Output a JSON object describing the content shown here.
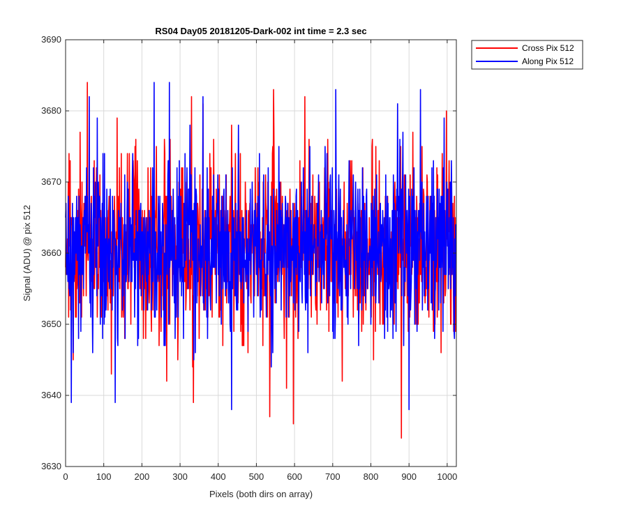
{
  "chart_data": {
    "type": "line",
    "title": "RS04 Day05 20181205-Dark-002 int time = 2.3 sec",
    "xlabel": "Pixels (both dirs on array)",
    "ylabel": "Signal (ADU) @ pix 512",
    "xlim": [
      0,
      1024
    ],
    "ylim": [
      3630,
      3690
    ],
    "xticks": [
      0,
      100,
      200,
      300,
      400,
      500,
      600,
      700,
      800,
      900,
      1000
    ],
    "yticks": [
      3630,
      3640,
      3650,
      3660,
      3670,
      3680,
      3690
    ],
    "xtick_labels": [
      "0",
      "100",
      "200",
      "300",
      "400",
      "500",
      "600",
      "700",
      "800",
      "900",
      "1000"
    ],
    "ytick_labels": [
      "3630",
      "3640",
      "3650",
      "3660",
      "3670",
      "3680",
      "3690"
    ],
    "grid": true,
    "legend_position": "outside-top-right",
    "n_points": 1024,
    "series": [
      {
        "name": "Cross Pix 512",
        "color": "#ff0000",
        "mean": 3661,
        "std": 6.2,
        "range": [
          3634,
          3684
        ],
        "notable_points": [
          {
            "x": 57,
            "y": 3684
          },
          {
            "x": 120,
            "y": 3643
          },
          {
            "x": 135,
            "y": 3679
          },
          {
            "x": 265,
            "y": 3642
          },
          {
            "x": 330,
            "y": 3682
          },
          {
            "x": 335,
            "y": 3639
          },
          {
            "x": 360,
            "y": 3681
          },
          {
            "x": 535,
            "y": 3637
          },
          {
            "x": 545,
            "y": 3683
          },
          {
            "x": 597,
            "y": 3636
          },
          {
            "x": 725,
            "y": 3642
          },
          {
            "x": 880,
            "y": 3634
          }
        ]
      },
      {
        "name": "Along Pix 512",
        "color": "#0000ff",
        "mean": 3661,
        "std": 6.0,
        "range": [
          3638,
          3684
        ],
        "notable_points": [
          {
            "x": 15,
            "y": 3639
          },
          {
            "x": 62,
            "y": 3682
          },
          {
            "x": 130,
            "y": 3639
          },
          {
            "x": 232,
            "y": 3684
          },
          {
            "x": 272,
            "y": 3684
          },
          {
            "x": 360,
            "y": 3682
          },
          {
            "x": 435,
            "y": 3638
          },
          {
            "x": 708,
            "y": 3683
          },
          {
            "x": 870,
            "y": 3681
          },
          {
            "x": 900,
            "y": 3638
          },
          {
            "x": 930,
            "y": 3683
          }
        ]
      }
    ]
  }
}
